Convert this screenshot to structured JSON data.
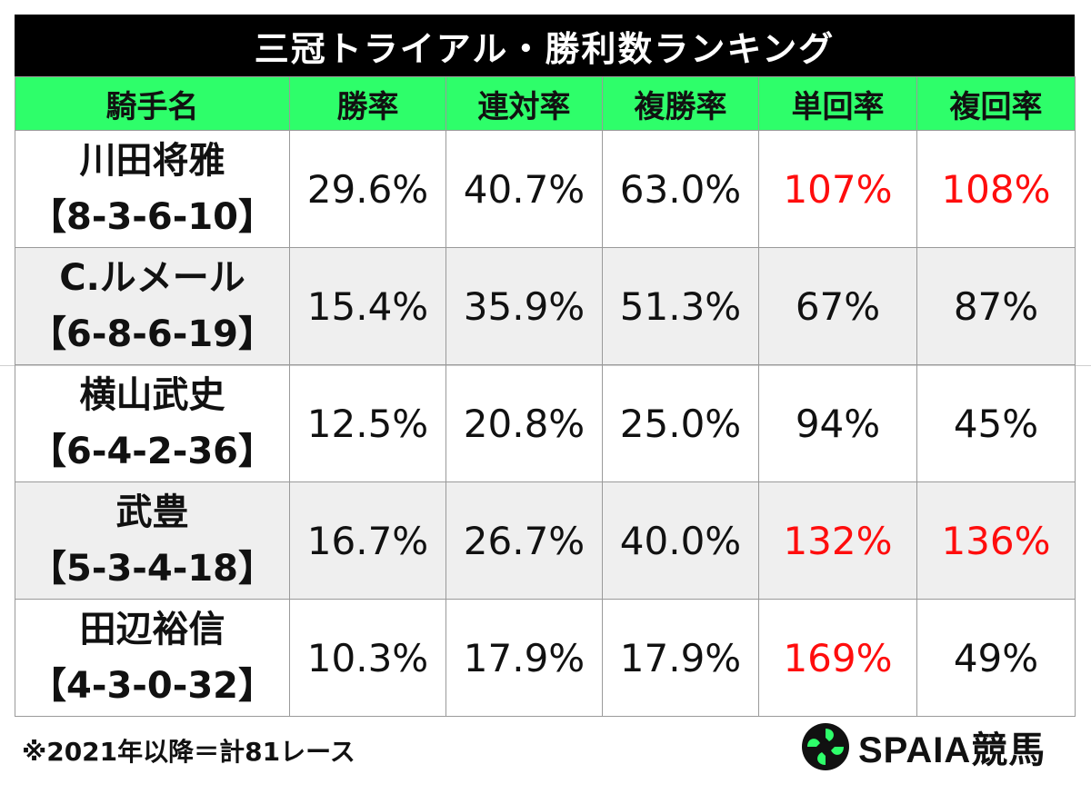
{
  "title": "三冠トライアル・勝利数ランキング",
  "columns": [
    "騎手名",
    "勝率",
    "連対率",
    "複勝率",
    "単回率",
    "複回率"
  ],
  "rows": [
    {
      "name": "川田将雅",
      "record": "【8-3-6-10】",
      "win_rate": "29.6%",
      "quinella_rate": "40.7%",
      "show_rate": "63.0%",
      "win_return": "107%",
      "show_return": "108%",
      "win_return_highlight": true,
      "show_return_highlight": true
    },
    {
      "name": "C.ルメール",
      "record": "【6-8-6-19】",
      "win_rate": "15.4%",
      "quinella_rate": "35.9%",
      "show_rate": "51.3%",
      "win_return": "67%",
      "show_return": "87%",
      "win_return_highlight": false,
      "show_return_highlight": false
    },
    {
      "name": "横山武史",
      "record": "【6-4-2-36】",
      "win_rate": "12.5%",
      "quinella_rate": "20.8%",
      "show_rate": "25.0%",
      "win_return": "94%",
      "show_return": "45%",
      "win_return_highlight": false,
      "show_return_highlight": false
    },
    {
      "name": "武豊",
      "record": "【5-3-4-18】",
      "win_rate": "16.7%",
      "quinella_rate": "26.7%",
      "show_rate": "40.0%",
      "win_return": "132%",
      "show_return": "136%",
      "win_return_highlight": true,
      "show_return_highlight": true
    },
    {
      "name": "田辺裕信",
      "record": "【4-3-0-32】",
      "win_rate": "10.3%",
      "quinella_rate": "17.9%",
      "show_rate": "17.9%",
      "win_return": "169%",
      "show_return": "49%",
      "win_return_highlight": true,
      "show_return_highlight": false
    }
  ],
  "footnote": "※2021年以降＝計81レース",
  "brand": {
    "name": "SPAIA競馬",
    "icon": "spaia-logo-icon"
  },
  "colors": {
    "title_bg": "#000000",
    "header_bg": "#2efe6a",
    "highlight": "#ff0d0d",
    "shaded_row": "#efefef"
  }
}
